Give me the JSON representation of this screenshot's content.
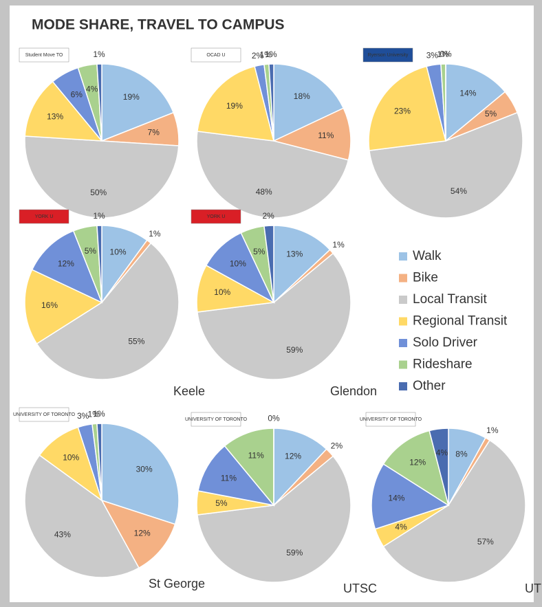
{
  "title": "MODE SHARE, TRAVEL TO CAMPUS",
  "legend": {
    "categories": [
      "Walk",
      "Bike",
      "Local Transit",
      "Regional Transit",
      "Solo Driver",
      "Rideshare",
      "Other"
    ],
    "colors": [
      "#9dc3e6",
      "#f4b183",
      "#cacaca",
      "#ffd966",
      "#7090d8",
      "#a9d18e",
      "#4a6cb0"
    ]
  },
  "chart_data": [
    {
      "type": "pie",
      "logo": "Student Move TO",
      "values": [
        19,
        7,
        50,
        13,
        6,
        4,
        1
      ],
      "value_labels": [
        "19%",
        "7%",
        "50%",
        "13%",
        "6%",
        "4%",
        "1%"
      ]
    },
    {
      "type": "pie",
      "logo": "OCAD U",
      "values": [
        18,
        11,
        48,
        19,
        2,
        1,
        1
      ],
      "value_labels": [
        "18%",
        "11%",
        "48%",
        "19%",
        "2%",
        "1%",
        "1%"
      ]
    },
    {
      "type": "pie",
      "logo": "Ryerson University",
      "values": [
        14,
        5,
        54,
        23,
        3,
        1,
        0
      ],
      "value_labels": [
        "14%",
        "5%",
        "54%",
        "23%",
        "3%",
        "1%",
        "0%"
      ]
    },
    {
      "type": "pie",
      "logo": "YORK U",
      "label": "Keele",
      "values": [
        10,
        1,
        55,
        16,
        12,
        5,
        1
      ],
      "value_labels": [
        "10%",
        "1%",
        "55%",
        "16%",
        "12%",
        "5%",
        "1%"
      ]
    },
    {
      "type": "pie",
      "logo": "YORK U",
      "label": "Glendon",
      "values": [
        13,
        1,
        59,
        10,
        10,
        5,
        2
      ],
      "value_labels": [
        "13%",
        "1%",
        "59%",
        "10%",
        "10%",
        "5%",
        "2%"
      ]
    },
    {
      "type": "pie",
      "logo": "UNIVERSITY OF TORONTO",
      "label": "St George",
      "values": [
        30,
        12,
        43,
        10,
        3,
        1,
        1
      ],
      "value_labels": [
        "30%",
        "12%",
        "43%",
        "10%",
        "3%",
        "1%",
        "1%"
      ]
    },
    {
      "type": "pie",
      "logo": "UNIVERSITY OF TORONTO",
      "label": "UTSC",
      "values": [
        12,
        2,
        59,
        5,
        11,
        11,
        0
      ],
      "value_labels": [
        "12%",
        "2%",
        "59%",
        "5%",
        "11%",
        "11%",
        "0%"
      ]
    },
    {
      "type": "pie",
      "logo": "UNIVERSITY OF TORONTO",
      "label": "UTM",
      "values": [
        8,
        1,
        57,
        4,
        14,
        12,
        4
      ],
      "value_labels": [
        "8%",
        "1%",
        "57%",
        "4%",
        "14%",
        "12%",
        "4%"
      ]
    }
  ]
}
